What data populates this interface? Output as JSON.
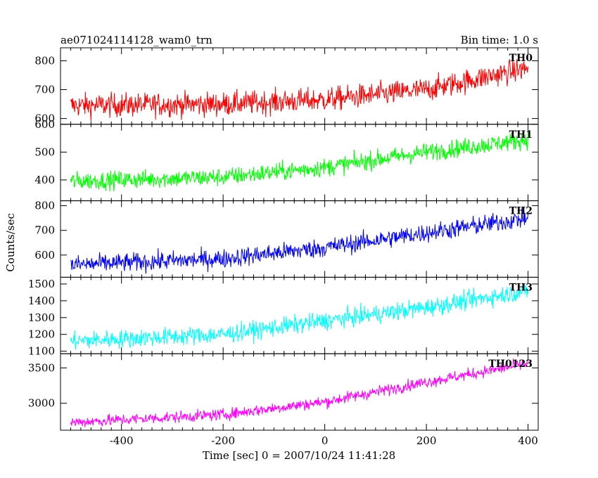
{
  "chart_data": {
    "type": "line",
    "title": "ae071024114128_wam0_trn",
    "subtitle": "Bin time: 1.0 s",
    "xlabel": "Time [sec] 0 = 2007/10/24 11:41:28",
    "ylabel": "Counts/sec",
    "xlim": [
      -520,
      420
    ],
    "xticks": [
      -400,
      -200,
      0,
      200,
      400
    ],
    "x_range_data": [
      -500,
      400
    ],
    "bin_time_s": 1.0,
    "grid": false,
    "panels": [
      {
        "name": "TH0",
        "color": "#ff0000",
        "ylim": [
          580,
          845
        ],
        "yticks": [
          600,
          700,
          800
        ],
        "trend": [
          {
            "x": -500,
            "y": 645
          },
          {
            "x": -200,
            "y": 650
          },
          {
            "x": 0,
            "y": 665
          },
          {
            "x": 200,
            "y": 700
          },
          {
            "x": 400,
            "y": 775
          }
        ],
        "noise": 38
      },
      {
        "name": "TH1",
        "color": "#00ff00",
        "ylim": [
          325,
          600
        ],
        "yticks": [
          400,
          500,
          600
        ],
        "trend": [
          {
            "x": -500,
            "y": 395
          },
          {
            "x": -200,
            "y": 410
          },
          {
            "x": 0,
            "y": 445
          },
          {
            "x": 200,
            "y": 500
          },
          {
            "x": 400,
            "y": 545
          }
        ],
        "noise": 30
      },
      {
        "name": "TH2",
        "color": "#0000ff",
        "ylim": [
          510,
          820
        ],
        "yticks": [
          600,
          700,
          800
        ],
        "trend": [
          {
            "x": -500,
            "y": 560
          },
          {
            "x": -200,
            "y": 585
          },
          {
            "x": 0,
            "y": 630
          },
          {
            "x": 200,
            "y": 690
          },
          {
            "x": 400,
            "y": 750
          }
        ],
        "noise": 35
      },
      {
        "name": "TH3",
        "color": "#00ffff",
        "ylim": [
          1085,
          1540
        ],
        "yticks": [
          1100,
          1200,
          1300,
          1400,
          1500
        ],
        "trend": [
          {
            "x": -500,
            "y": 1160
          },
          {
            "x": -200,
            "y": 1200
          },
          {
            "x": 0,
            "y": 1280
          },
          {
            "x": 200,
            "y": 1360
          },
          {
            "x": 400,
            "y": 1460
          }
        ],
        "noise": 50
      },
      {
        "name": "TH0123",
        "color": "#ff00ff",
        "ylim": [
          2620,
          3700
        ],
        "yticks": [
          3000,
          3500
        ],
        "trend": [
          {
            "x": -500,
            "y": 2730
          },
          {
            "x": -200,
            "y": 2840
          },
          {
            "x": 0,
            "y": 3020
          },
          {
            "x": 200,
            "y": 3300
          },
          {
            "x": 400,
            "y": 3560
          }
        ],
        "noise": 75
      }
    ]
  }
}
